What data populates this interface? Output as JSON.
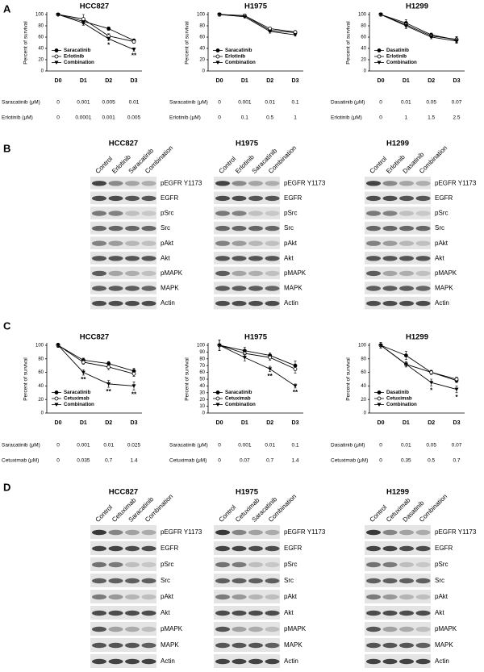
{
  "panel_labels": [
    "A",
    "B",
    "C",
    "D"
  ],
  "chart_data": [
    {
      "type": "line",
      "title": "HCC827",
      "ylabel": "Percent of survival",
      "categories": [
        "D0",
        "D1",
        "D2",
        "D3"
      ],
      "ylim": [
        0,
        100
      ],
      "yticks": [
        0,
        20,
        40,
        60,
        80,
        100
      ],
      "legend": "lower left",
      "series": [
        {
          "name": "Saracatinib",
          "color": "#000000",
          "marker": "circle",
          "values": [
            100,
            88,
            75,
            54
          ],
          "errors": [
            1,
            5,
            3,
            2
          ]
        },
        {
          "name": "Erlotinib",
          "color": "#000000",
          "marker": "open-circle",
          "values": [
            100,
            92,
            62,
            52
          ],
          "errors": [
            1,
            8,
            4,
            3
          ]
        },
        {
          "name": "Combination",
          "color": "#000000",
          "marker": "triangle",
          "values": [
            100,
            85,
            57,
            38
          ],
          "errors": [
            1,
            4,
            3,
            3
          ]
        }
      ],
      "annotations": [
        {
          "text": "*",
          "category": "D2"
        },
        {
          "text": "**",
          "category": "D3"
        }
      ],
      "doses": [
        {
          "label": "Saracatinib (μM)",
          "values": [
            0,
            0.001,
            0.005,
            0.01
          ]
        },
        {
          "label": "Erlotinib (μM)",
          "values": [
            0,
            0.0001,
            0.001,
            0.005
          ]
        }
      ]
    },
    {
      "type": "line",
      "title": "H1975",
      "ylabel": "Percent of survival",
      "categories": [
        "D0",
        "D1",
        "D2",
        "D3"
      ],
      "ylim": [
        0,
        100
      ],
      "yticks": [
        0,
        20,
        40,
        60,
        80,
        100
      ],
      "legend": "lower left",
      "series": [
        {
          "name": "Saracatinib",
          "color": "#000000",
          "marker": "circle",
          "values": [
            100,
            98,
            72,
            68
          ],
          "errors": [
            3,
            3,
            3,
            2
          ]
        },
        {
          "name": "Erlotinib",
          "color": "#000000",
          "marker": "open-circle",
          "values": [
            100,
            98,
            75,
            69
          ],
          "errors": [
            3,
            2,
            2,
            2
          ]
        },
        {
          "name": "Combination",
          "color": "#000000",
          "marker": "triangle",
          "values": [
            100,
            96,
            70,
            64
          ],
          "errors": [
            3,
            2,
            3,
            2
          ]
        }
      ],
      "annotations": [],
      "doses": [
        {
          "label": "Saracatinib (μM)",
          "values": [
            0,
            0.001,
            0.01,
            0.1
          ]
        },
        {
          "label": "Erlotinib (μM)",
          "values": [
            0,
            0.1,
            0.5,
            1
          ]
        }
      ]
    },
    {
      "type": "line",
      "title": "H1299",
      "ylabel": "Percent of survival",
      "categories": [
        "D0",
        "D1",
        "D2",
        "D3"
      ],
      "ylim": [
        0,
        100
      ],
      "yticks": [
        0,
        20,
        40,
        60,
        80,
        100
      ],
      "legend": "lower left",
      "series": [
        {
          "name": "Dasatinib",
          "color": "#000000",
          "marker": "circle",
          "values": [
            100,
            85,
            64,
            55
          ],
          "errors": [
            3,
            6,
            3,
            5
          ]
        },
        {
          "name": "Erlotinib",
          "color": "#000000",
          "marker": "open-circle",
          "values": [
            100,
            82,
            62,
            56
          ],
          "errors": [
            3,
            5,
            3,
            5
          ]
        },
        {
          "name": "Combination",
          "color": "#000000",
          "marker": "triangle",
          "values": [
            100,
            80,
            60,
            53
          ],
          "errors": [
            3,
            5,
            3,
            4
          ]
        }
      ],
      "annotations": [],
      "doses": [
        {
          "label": "Dasatinib (μM)",
          "values": [
            0,
            0.01,
            0.05,
            0.07
          ]
        },
        {
          "label": "Erlotinib (μM)",
          "values": [
            0,
            1,
            1.5,
            2.5
          ]
        }
      ]
    },
    {
      "type": "line",
      "title": "HCC827",
      "ylabel": "Percent of survival",
      "categories": [
        "D0",
        "D1",
        "D2",
        "D3"
      ],
      "ylim": [
        0,
        100
      ],
      "yticks": [
        0,
        20,
        40,
        60,
        80,
        100
      ],
      "legend": "lower left",
      "series": [
        {
          "name": "Saracatinib",
          "color": "#000000",
          "marker": "circle",
          "values": [
            100,
            78,
            73,
            62
          ],
          "errors": [
            3,
            3,
            3,
            4
          ]
        },
        {
          "name": "Cetuximab",
          "color": "#000000",
          "marker": "open-circle",
          "values": [
            100,
            75,
            68,
            58
          ],
          "errors": [
            3,
            3,
            4,
            4
          ]
        },
        {
          "name": "Combination",
          "color": "#000000",
          "marker": "triangle",
          "values": [
            100,
            60,
            43,
            40
          ],
          "errors": [
            3,
            4,
            5,
            6
          ]
        }
      ],
      "annotations": [
        {
          "text": "**",
          "category": "D1"
        },
        {
          "text": "**",
          "category": "D2"
        },
        {
          "text": "**",
          "category": "D3"
        }
      ],
      "doses": [
        {
          "label": "Saracatinib (μM)",
          "values": [
            0,
            0.001,
            0.01,
            0.025
          ]
        },
        {
          "label": "Cetuximab (μM)",
          "values": [
            0,
            0.035,
            0.7,
            1.4
          ]
        }
      ]
    },
    {
      "type": "line",
      "title": "H1975",
      "ylabel": "Percent of survival",
      "categories": [
        "D0",
        "D1",
        "D2",
        "D3"
      ],
      "ylim": [
        0,
        100
      ],
      "yticks": [
        0,
        10,
        20,
        30,
        40,
        50,
        60,
        70,
        80,
        90,
        100
      ],
      "legend": "lower left",
      "series": [
        {
          "name": "Saracatinib",
          "color": "#000000",
          "marker": "circle",
          "values": [
            100,
            92,
            85,
            70
          ],
          "errors": [
            8,
            5,
            4,
            7
          ]
        },
        {
          "name": "Cetuximab",
          "color": "#000000",
          "marker": "open-circle",
          "values": [
            100,
            88,
            82,
            65
          ],
          "errors": [
            8,
            5,
            4,
            6
          ]
        },
        {
          "name": "Combination",
          "color": "#000000",
          "marker": "triangle",
          "values": [
            100,
            82,
            65,
            40
          ],
          "errors": [
            8,
            5,
            4,
            3
          ]
        }
      ],
      "annotations": [
        {
          "text": "**",
          "category": "D2"
        },
        {
          "text": "**",
          "category": "D3"
        }
      ],
      "doses": [
        {
          "label": "Saracatinib (μM)",
          "values": [
            0,
            0.001,
            0.01,
            0.1
          ]
        },
        {
          "label": "Cetuximab (μM)",
          "values": [
            0,
            0.07,
            0.7,
            1.4
          ]
        }
      ]
    },
    {
      "type": "line",
      "title": "H1299",
      "ylabel": "Percent of survival",
      "categories": [
        "D0",
        "D1",
        "D2",
        "D3"
      ],
      "ylim": [
        0,
        100
      ],
      "yticks": [
        0,
        20,
        40,
        60,
        80,
        100
      ],
      "legend": "lower left",
      "series": [
        {
          "name": "Dasatinib",
          "color": "#000000",
          "marker": "circle",
          "values": [
            100,
            85,
            60,
            48
          ],
          "errors": [
            4,
            6,
            3,
            3
          ]
        },
        {
          "name": "Cetuximab",
          "color": "#000000",
          "marker": "open-circle",
          "values": [
            100,
            72,
            60,
            50
          ],
          "errors": [
            4,
            4,
            3,
            3
          ]
        },
        {
          "name": "Combination",
          "color": "#000000",
          "marker": "triangle",
          "values": [
            100,
            72,
            45,
            35
          ],
          "errors": [
            4,
            4,
            5,
            5
          ]
        }
      ],
      "annotations": [
        {
          "text": "*",
          "category": "D2"
        },
        {
          "text": "*",
          "category": "D3"
        }
      ],
      "doses": [
        {
          "label": "Dasatinib (μM)",
          "values": [
            0,
            0.01,
            0.05,
            0.07
          ]
        },
        {
          "label": "Cetuximab (μM)",
          "values": [
            0,
            0.35,
            0.5,
            0.7
          ]
        }
      ]
    }
  ],
  "blots": [
    {
      "title": "HCC827",
      "lanes": [
        "Control",
        "Erlotinib",
        "Saracatinib",
        "Combination"
      ],
      "proteins": [
        "pEGFR Y1173",
        "EGFR",
        "pSrc",
        "Src",
        "pAkt",
        "Akt",
        "pMAPK",
        "MAPK",
        "Actin"
      ]
    },
    {
      "title": "H1975",
      "lanes": [
        "Control",
        "Erlotinib",
        "Saracatinib",
        "Combination"
      ],
      "proteins": [
        "pEGFR Y1173",
        "EGFR",
        "pSrc",
        "Src",
        "pAkt",
        "Akt",
        "pMAPK",
        "MAPK",
        "Actin"
      ]
    },
    {
      "title": "H1299",
      "lanes": [
        "Control",
        "Erlotinib",
        "Dasatinib",
        "Combination"
      ],
      "proteins": [
        "pEGFR Y1173",
        "EGFR",
        "pSrc",
        "Src",
        "pAkt",
        "Akt",
        "pMAPK",
        "MAPK",
        "Actin"
      ]
    },
    {
      "title": "HCC827",
      "lanes": [
        "Control",
        "Cetuximab",
        "Saracatinib",
        "Combination"
      ],
      "proteins": [
        "pEGFR Y1173",
        "EGFR",
        "pSrc",
        "Src",
        "pAkt",
        "Akt",
        "pMAPK",
        "MAPK",
        "Actin"
      ]
    },
    {
      "title": "H1975",
      "lanes": [
        "Control",
        "Cetuximab",
        "Saracatinib",
        "Combination"
      ],
      "proteins": [
        "pEGFR Y1173",
        "EGFR",
        "pSrc",
        "Src",
        "pAkt",
        "Akt",
        "pMAPK",
        "MAPK",
        "Actin"
      ]
    },
    {
      "title": "H1299",
      "lanes": [
        "Control",
        "Cetuximab",
        "Dasatinib",
        "Combination"
      ],
      "proteins": [
        "pEGFR Y1173",
        "EGFR",
        "pSrc",
        "Src",
        "pAkt",
        "Akt",
        "pMAPK",
        "MAPK",
        "Actin"
      ]
    }
  ]
}
